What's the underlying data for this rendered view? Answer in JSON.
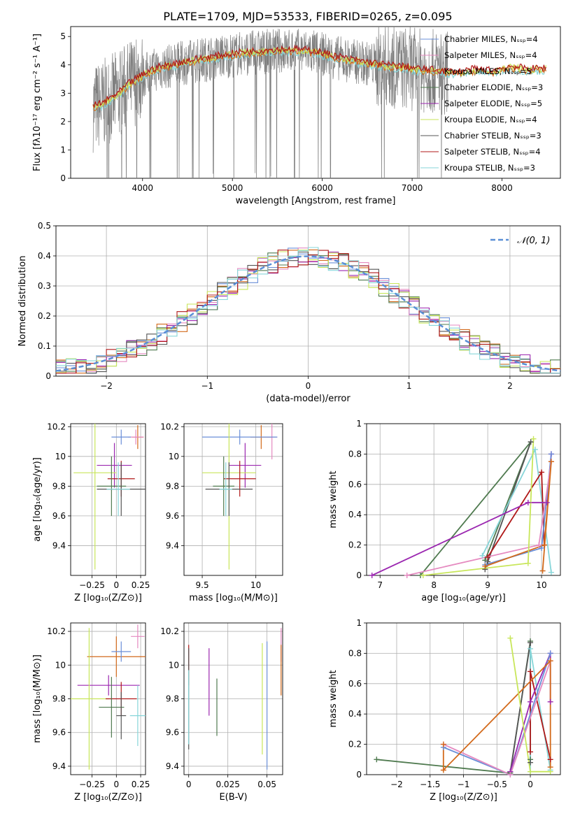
{
  "figure": {
    "title": "PLATE=1709, MJD=53533, FIBERID=0265, z=0.095"
  },
  "colors": {
    "series": [
      "#6a8fd8",
      "#e58ac0",
      "#d36a1b",
      "#4f7a4f",
      "#9b27b0",
      "#c8e65a",
      "#555555",
      "#b01818",
      "#87d6d9"
    ],
    "gaussian": "#5a8fd6",
    "spectrum": "#7f7f7f"
  },
  "chart_data": [
    {
      "id": "spectrum",
      "type": "line",
      "xlabel": "wavelength [Angstrom, rest frame]",
      "ylabel": "Flux [fλ10⁻¹⁷ erg cm⁻² s⁻¹ A⁻¹]",
      "xlim": [
        3200,
        8650
      ],
      "ylim": [
        0,
        5.35
      ],
      "xticks": [
        4000,
        5000,
        6000,
        7000,
        8000
      ],
      "yticks": [
        0,
        1,
        2,
        3,
        4,
        5
      ],
      "legend_position": "top-right",
      "legend": [
        {
          "text": "Chabrier MILES, Nₛₛₚ=4"
        },
        {
          "text": "Salpeter MILES, Nₛₛₚ=4"
        },
        {
          "text": "Kroupa MILES, Nₛₛₚ=5"
        },
        {
          "text": "Chabrier ELODIE, Nₛₛₚ=3"
        },
        {
          "text": "Salpeter ELODIE, Nₛₛₚ=5"
        },
        {
          "text": "Kroupa ELODIE, Nₛₛₚ=4"
        },
        {
          "text": "Chabrier STELIB, Nₛₛₚ=3"
        },
        {
          "text": "Salpeter STELIB, Nₛₛₚ=4"
        },
        {
          "text": "Kroupa STELIB, Nₛₛₚ=3"
        }
      ],
      "model_continuum": {
        "x": [
          3450,
          3550,
          3650,
          3750,
          3850,
          3950,
          4050,
          4150,
          4300,
          4500,
          4700,
          4900,
          5100,
          5300,
          5500,
          5700,
          5900,
          6100,
          6300,
          6500,
          6700,
          6900,
          7100,
          7300,
          7500,
          7700,
          7900,
          8100,
          8300,
          8500
        ],
        "y": [
          2.5,
          2.6,
          2.8,
          3.0,
          3.3,
          3.5,
          3.7,
          3.85,
          3.95,
          4.1,
          4.2,
          4.3,
          4.4,
          4.45,
          4.5,
          4.5,
          4.45,
          4.3,
          4.15,
          4.05,
          3.95,
          3.9,
          3.8,
          3.75,
          3.7,
          3.8,
          3.75,
          3.9,
          3.8,
          3.85
        ]
      }
    },
    {
      "id": "residuals",
      "type": "line",
      "xlabel": "(data-model)/error",
      "ylabel": "Normed distribution",
      "xlim": [
        -2.5,
        2.5
      ],
      "ylim": [
        0,
        0.5
      ],
      "xticks": [
        -2,
        -1,
        0,
        1,
        2
      ],
      "yticks": [
        0.0,
        0.1,
        0.2,
        0.3,
        0.4,
        0.5
      ],
      "grid": true,
      "legend_position": "top-right",
      "gaussian_label": "𝒩(0, 1)"
    },
    {
      "id": "age_vs_Z",
      "type": "scatter",
      "xlabel": "Z [log₁₀(Z/Z⊙)]",
      "ylabel": "age  [log₁₀(age/yr)]",
      "xlim": [
        -0.47,
        0.3
      ],
      "ylim": [
        9.2,
        10.22
      ],
      "xticks": [
        -0.25,
        0.0,
        0.25
      ],
      "yticks": [
        9.4,
        9.6,
        9.8,
        10.0,
        10.2
      ],
      "grid": true,
      "points": [
        {
          "x": 0.22,
          "y": 10.13,
          "xerr": 0.06,
          "yerr": 0.08,
          "c": 2
        },
        {
          "x": 0.2,
          "y": 10.13,
          "xerr": 0.08,
          "yerr": 0.05,
          "c": 1
        },
        {
          "x": 0.05,
          "y": 10.13,
          "xerr": 0.1,
          "yerr": 0.05,
          "c": 0
        },
        {
          "x": -0.02,
          "y": 9.94,
          "xerr": 0.18,
          "yerr": 0.15,
          "c": 4
        },
        {
          "x": -0.22,
          "y": 9.89,
          "xerr": 0.22,
          "yerr": 0.65,
          "c": 5
        },
        {
          "x": 0.05,
          "y": 9.85,
          "xerr": 0.14,
          "yerr": 0.12,
          "c": 7
        },
        {
          "x": -0.05,
          "y": 9.8,
          "xerr": 0.15,
          "yerr": 0.2,
          "c": 3
        },
        {
          "x": 0.05,
          "y": 9.78,
          "xerr": 0.25,
          "yerr": 0.18,
          "c": 6
        },
        {
          "x": 0.02,
          "y": 9.78,
          "xerr": 0.12,
          "yerr": 0.18,
          "c": 8
        }
      ]
    },
    {
      "id": "age_vs_mass",
      "type": "scatter",
      "xlabel": "mass [log₁₀(M/M⊙)]",
      "ylabel": "",
      "xlim": [
        9.33,
        10.25
      ],
      "ylim": [
        9.2,
        10.22
      ],
      "xticks": [
        9.5,
        10.0
      ],
      "yticks": [
        9.4,
        9.6,
        9.8,
        10.0,
        10.2
      ],
      "grid": true,
      "points": [
        {
          "x": 10.05,
          "y": 10.13,
          "xerr": 0.1,
          "yerr": 0.08,
          "c": 2
        },
        {
          "x": 10.15,
          "y": 10.13,
          "xerr": 0.05,
          "yerr": 0.15,
          "c": 1
        },
        {
          "x": 9.85,
          "y": 10.13,
          "xerr": 0.35,
          "yerr": 0.05,
          "c": 0
        },
        {
          "x": 9.9,
          "y": 9.94,
          "xerr": 0.15,
          "yerr": 0.15,
          "c": 4
        },
        {
          "x": 9.75,
          "y": 9.89,
          "xerr": 0.25,
          "yerr": 0.65,
          "c": 5
        },
        {
          "x": 9.85,
          "y": 9.85,
          "xerr": 0.15,
          "yerr": 0.12,
          "c": 7
        },
        {
          "x": 9.7,
          "y": 9.8,
          "xerr": 0.1,
          "yerr": 0.2,
          "c": 3
        },
        {
          "x": 9.75,
          "y": 9.78,
          "xerr": 0.22,
          "yerr": 0.18,
          "c": 6
        },
        {
          "x": 9.72,
          "y": 9.78,
          "xerr": 0.06,
          "yerr": 0.18,
          "c": 8
        }
      ]
    },
    {
      "id": "weight_vs_age",
      "type": "line",
      "xlabel": "age  [log₁₀(age/yr)]",
      "ylabel": "mass weight",
      "xlim": [
        6.75,
        10.35
      ],
      "ylim": [
        0,
        1.0
      ],
      "xticks": [
        7,
        8,
        9,
        10
      ],
      "yticks": [
        0.0,
        0.2,
        0.4,
        0.6,
        0.8,
        1.0
      ],
      "grid": true,
      "series": [
        {
          "c": 3,
          "x": [
            7.75,
            9.8,
            8.95
          ],
          "y": [
            0.0,
            0.88,
            0.1
          ]
        },
        {
          "c": 6,
          "x": [
            9.0,
            9.8,
            8.95
          ],
          "y": [
            0.09,
            0.88,
            0.04
          ]
        },
        {
          "c": 8,
          "x": [
            8.9,
            9.88,
            10.18
          ],
          "y": [
            0.13,
            0.83,
            0.02
          ]
        },
        {
          "c": 7,
          "x": [
            9.0,
            10.0,
            10.05
          ],
          "y": [
            0.12,
            0.68,
            0.2
          ]
        },
        {
          "c": 4,
          "x": [
            6.85,
            9.75,
            10.1,
            10.18
          ],
          "y": [
            0.0,
            0.48,
            0.48,
            0.8
          ]
        },
        {
          "c": 0,
          "x": [
            8.95,
            10.0,
            10.18
          ],
          "y": [
            0.07,
            0.18,
            0.8
          ]
        },
        {
          "c": 1,
          "x": [
            7.5,
            9.95,
            10.18
          ],
          "y": [
            0.0,
            0.2,
            0.75
          ]
        },
        {
          "c": 2,
          "x": [
            8.95,
            10.05,
            10.18,
            10.02
          ],
          "y": [
            0.06,
            0.2,
            0.75,
            0.03
          ]
        },
        {
          "c": 5,
          "x": [
            7.8,
            9.75,
            9.85
          ],
          "y": [
            0.0,
            0.08,
            0.9
          ]
        }
      ]
    },
    {
      "id": "mass_vs_Z",
      "type": "scatter",
      "xlabel": "Z [log₁₀(Z/Z⊙)]",
      "ylabel": "mass [log₁₀(M/M⊙)]",
      "xlim": [
        -0.47,
        0.3
      ],
      "ylim": [
        9.35,
        10.25
      ],
      "xticks": [
        -0.25,
        0.0,
        0.25
      ],
      "yticks": [
        9.4,
        9.6,
        9.8,
        10.0,
        10.2
      ],
      "grid": true,
      "points": [
        {
          "x": 0.22,
          "y": 10.17,
          "xerr": 0.07,
          "yerr": 0.07,
          "c": 1
        },
        {
          "x": 0.0,
          "y": 10.05,
          "xerr": 0.3,
          "yerr": 0.12,
          "c": 2
        },
        {
          "x": 0.05,
          "y": 10.08,
          "xerr": 0.1,
          "yerr": 0.06,
          "c": 0
        },
        {
          "x": -0.08,
          "y": 9.88,
          "xerr": 0.32,
          "yerr": 0.06,
          "c": 4
        },
        {
          "x": -0.28,
          "y": 9.8,
          "xerr": 0.2,
          "yerr": 0.42,
          "c": 5
        },
        {
          "x": 0.05,
          "y": 9.8,
          "xerr": 0.16,
          "yerr": 0.1,
          "c": 7
        },
        {
          "x": -0.05,
          "y": 9.75,
          "xerr": 0.13,
          "yerr": 0.18,
          "c": 3
        },
        {
          "x": 0.22,
          "y": 9.7,
          "xerr": 0.08,
          "yerr": 0.18,
          "c": 8
        },
        {
          "x": 0.05,
          "y": 9.7,
          "xerr": 0.05,
          "yerr": 0.14,
          "c": 6
        }
      ]
    },
    {
      "id": "mass_vs_EBV",
      "type": "scatter",
      "xlabel": "E(B-V)",
      "ylabel": "",
      "xlim": [
        -0.003,
        0.06
      ],
      "ylim": [
        9.35,
        10.25
      ],
      "xticks": [
        0.0,
        0.025,
        0.05
      ],
      "yticks": [
        9.4,
        9.6,
        9.8,
        10.0,
        10.2
      ],
      "grid": true,
      "points": [
        {
          "x": 0.0,
          "y": 10.0,
          "xerr": 0,
          "yerr": 0.12,
          "c": 7
        },
        {
          "x": 0.0,
          "y": 9.8,
          "xerr": 0,
          "yerr": 0.3,
          "c": 6
        },
        {
          "x": 0.0,
          "y": 9.75,
          "xerr": 0,
          "yerr": 0.22,
          "c": 8
        },
        {
          "x": 0.013,
          "y": 9.9,
          "xerr": 0,
          "yerr": 0.2,
          "c": 4
        },
        {
          "x": 0.018,
          "y": 9.75,
          "xerr": 0,
          "yerr": 0.17,
          "c": 3
        },
        {
          "x": 0.047,
          "y": 9.8,
          "xerr": 0,
          "yerr": 0.33,
          "c": 5
        },
        {
          "x": 0.05,
          "y": 9.76,
          "xerr": 0,
          "yerr": 0.38,
          "c": 0
        },
        {
          "x": 0.059,
          "y": 10.12,
          "xerr": 0,
          "yerr": 0.1,
          "c": 1
        },
        {
          "x": 0.059,
          "y": 9.97,
          "xerr": 0,
          "yerr": 0.15,
          "c": 2
        }
      ]
    },
    {
      "id": "weight_vs_Z",
      "type": "line",
      "xlabel": "Z [log₁₀(Z/Z⊙)]",
      "ylabel": "mass weight",
      "xlim": [
        -2.45,
        0.45
      ],
      "ylim": [
        0,
        1.0
      ],
      "xticks": [
        -2.0,
        -1.5,
        -1.0,
        -0.5,
        0.0
      ],
      "yticks": [
        0.0,
        0.2,
        0.4,
        0.6,
        0.8,
        1.0
      ],
      "grid": true,
      "series": [
        {
          "c": 3,
          "x": [
            -2.3,
            -0.3,
            0.0,
            0.0
          ],
          "y": [
            0.1,
            0.01,
            0.88,
            0.1
          ]
        },
        {
          "c": 6,
          "x": [
            -0.3,
            0.0,
            0.0
          ],
          "y": [
            0.02,
            0.87,
            0.08
          ]
        },
        {
          "c": 8,
          "x": [
            0.0,
            0.0,
            0.3
          ],
          "y": [
            0.02,
            0.83,
            0.03
          ]
        },
        {
          "c": 7,
          "x": [
            0.0,
            0.0,
            0.3
          ],
          "y": [
            0.15,
            0.68,
            0.1
          ]
        },
        {
          "c": 4,
          "x": [
            -0.3,
            0.0,
            0.3,
            0.3
          ],
          "y": [
            0.02,
            0.48,
            0.8,
            0.48
          ]
        },
        {
          "c": 0,
          "x": [
            -1.3,
            -0.3,
            0.3
          ],
          "y": [
            0.18,
            0.0,
            0.8
          ]
        },
        {
          "c": 1,
          "x": [
            -1.3,
            -0.3,
            0.3
          ],
          "y": [
            0.2,
            0.0,
            0.75
          ]
        },
        {
          "c": 2,
          "x": [
            -1.3,
            -1.3,
            0.3,
            0.3
          ],
          "y": [
            0.2,
            0.03,
            0.75,
            0.05
          ]
        },
        {
          "c": 5,
          "x": [
            -0.3,
            0.0,
            0.3
          ],
          "y": [
            0.9,
            0.02,
            0.02
          ]
        }
      ]
    }
  ]
}
